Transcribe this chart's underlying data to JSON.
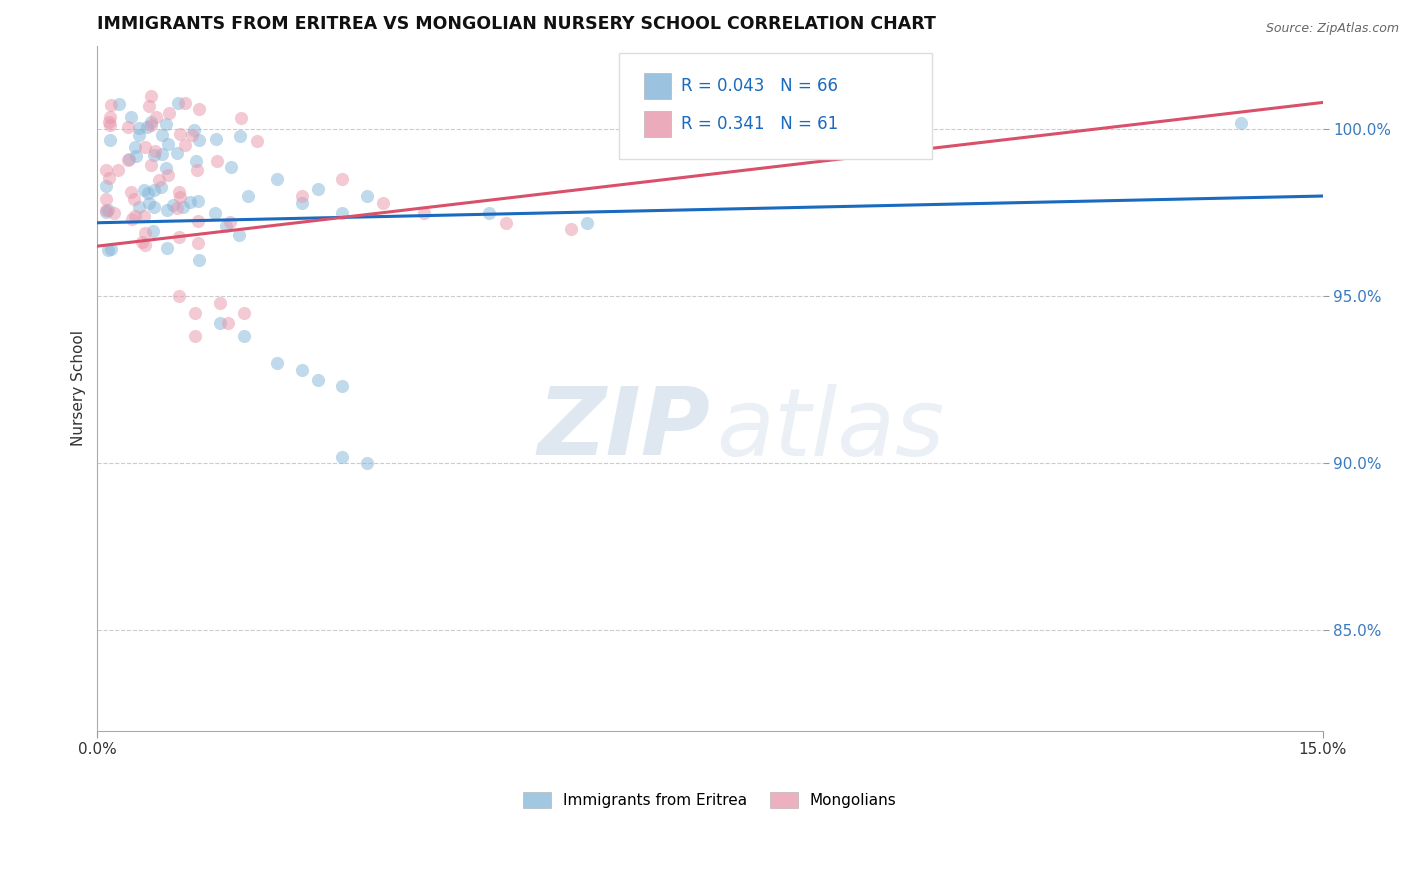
{
  "title": "IMMIGRANTS FROM ERITREA VS MONGOLIAN NURSERY SCHOOL CORRELATION CHART",
  "source": "Source: ZipAtlas.com",
  "ylabel": "Nursery School",
  "xmin": 0.0,
  "xmax": 0.15,
  "ymin": 82.0,
  "ymax": 102.5,
  "xtick_labels": [
    "0.0%",
    "15.0%"
  ],
  "xtick_positions": [
    0.0,
    0.15
  ],
  "ytick_labels": [
    "85.0%",
    "90.0%",
    "95.0%",
    "100.0%"
  ],
  "ytick_positions": [
    85.0,
    90.0,
    95.0,
    100.0
  ],
  "R_blue": 0.043,
  "N_blue": 66,
  "R_pink": 0.341,
  "N_pink": 61,
  "label_blue": "Immigrants from Eritrea",
  "label_pink": "Mongolians",
  "blue_line_color": "#1a6abf",
  "pink_line_color": "#d9506a",
  "scatter_blue_color": "#82b5d8",
  "scatter_pink_color": "#e896aa",
  "scatter_alpha": 0.5,
  "scatter_size": 90,
  "watermark_zip": "ZIP",
  "watermark_atlas": "atlas",
  "watermark_color": "#cad9e8",
  "background_color": "#ffffff",
  "grid_color": "#cccccc",
  "blue_trend_y0": 97.2,
  "blue_trend_y1": 98.0,
  "pink_trend_y0": 96.5,
  "pink_trend_y1": 100.8
}
